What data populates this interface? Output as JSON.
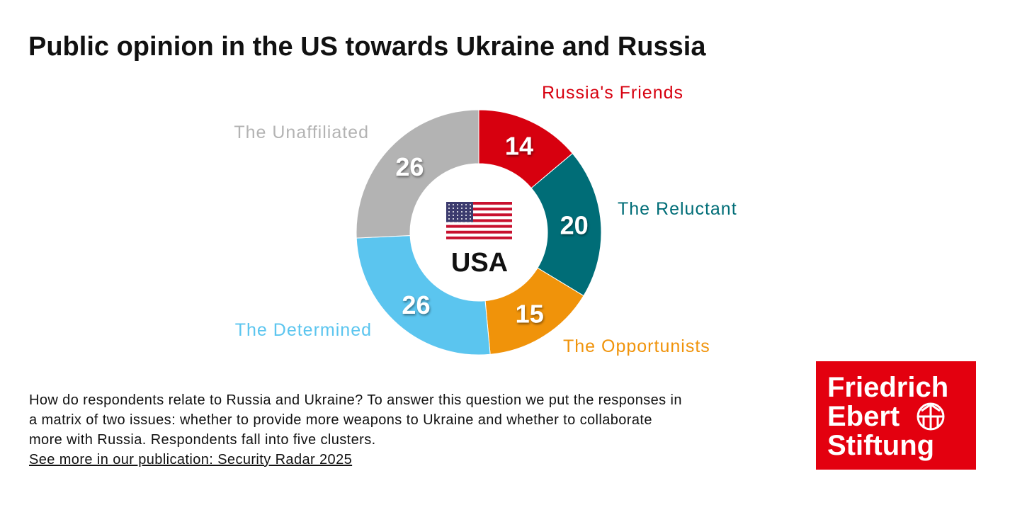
{
  "chart_data": {
    "type": "donut",
    "title": "Public opinion in the US towards Ukraine and Russia",
    "center_label": "USA",
    "categories": [
      "Russia's Friends",
      "The Reluctant",
      "The Opportunists",
      "The Determined",
      "The Unaffiliated"
    ],
    "values": [
      14,
      20,
      15,
      26,
      26
    ],
    "colors": [
      "#d7000f",
      "#006d77",
      "#f0930a",
      "#5bc5ef",
      "#b3b3b3"
    ]
  },
  "description": [
    "How do respondents relate to Russia and Ukraine? To answer this question we put the responses in",
    "a matrix of two issues: whether to provide more weapons to Ukraine and whether to collaborate",
    "more with Russia. Respondents fall into five clusters."
  ],
  "link": "See more in our publication: Security Radar 2025",
  "logo": [
    "Friedrich",
    "Ebert",
    "Stiftung"
  ]
}
